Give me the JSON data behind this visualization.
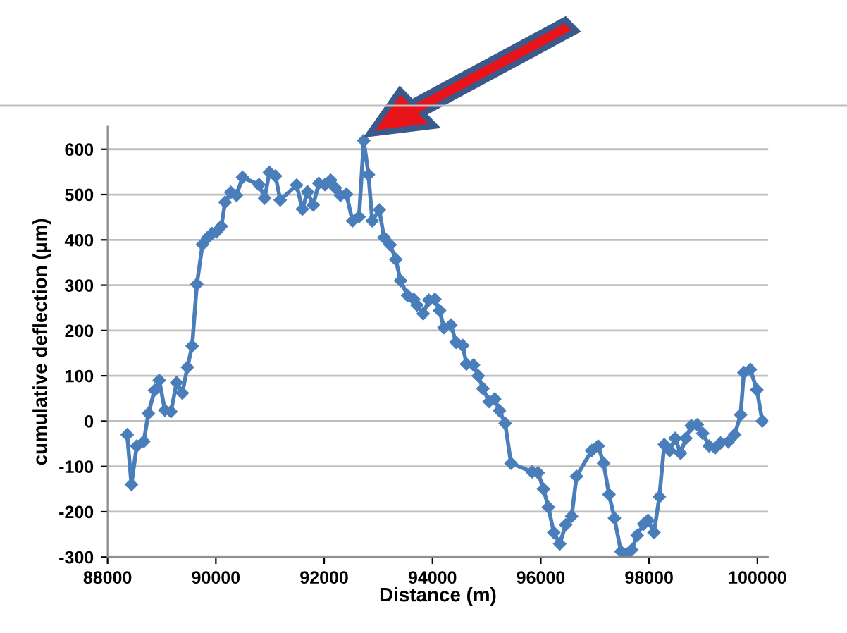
{
  "chart_data": {
    "type": "line",
    "xlabel": "Distance (m)",
    "ylabel": "cumulative deflection (µm)",
    "xlim": [
      88000,
      100200
    ],
    "xticks": [
      88000,
      90000,
      92000,
      94000,
      96000,
      98000,
      100000
    ],
    "ylim": [
      -300,
      650
    ],
    "yticks": [
      -300,
      -200,
      -100,
      0,
      100,
      200,
      300,
      400,
      500,
      600
    ],
    "grid": "y",
    "marker": "diamond",
    "line_style": "solid",
    "legend": false,
    "series": [
      {
        "color": "#4a7ebb",
        "x": [
          88363,
          88441,
          88538,
          88668,
          88754,
          88867,
          88954,
          89058,
          89171,
          89275,
          89380,
          89475,
          89562,
          89649,
          89753,
          89840,
          89927,
          90014,
          90101,
          90170,
          90275,
          90379,
          90492,
          90797,
          90901,
          90988,
          91101,
          91188,
          91492,
          91597,
          91692,
          91797,
          91901,
          92014,
          92119,
          92206,
          92301,
          92410,
          92522,
          92644,
          92731,
          92818,
          92888,
          93018,
          93105,
          93218,
          93322,
          93410,
          93540,
          93653,
          93714,
          93828,
          93932,
          94045,
          94132,
          94210,
          94340,
          94436,
          94558,
          94627,
          94758,
          94845,
          94932,
          95046,
          95150,
          95237,
          95342,
          95450,
          95840,
          95950,
          96050,
          96140,
          96240,
          96350,
          96460,
          96570,
          96660,
          96940,
          97060,
          97160,
          97260,
          97360,
          97480,
          97580,
          97680,
          97780,
          97900,
          97980,
          98090,
          98190,
          98280,
          98380,
          98480,
          98580,
          98680,
          98780,
          98890,
          98990,
          99110,
          99220,
          99320,
          99460,
          99580,
          99690,
          99750,
          99870,
          99990,
          100090
        ],
        "values": [
          -30,
          -140,
          -55,
          -45,
          17,
          68,
          90,
          24,
          21,
          85,
          62,
          119,
          166,
          302,
          390,
          404,
          414,
          418,
          430,
          483,
          505,
          498,
          538,
          522,
          492,
          549,
          541,
          488,
          521,
          468,
          506,
          477,
          525,
          522,
          532,
          515,
          498,
          501,
          442,
          451,
          619,
          544,
          442,
          466,
          405,
          389,
          357,
          310,
          277,
          269,
          256,
          237,
          267,
          269,
          244,
          206,
          212,
          174,
          167,
          126,
          124,
          100,
          72,
          43,
          49,
          23,
          -5,
          -93,
          -112,
          -114,
          -150,
          -190,
          -246,
          -271,
          -229,
          -210,
          -122,
          -65,
          -55,
          -93,
          -162,
          -214,
          -288,
          -293,
          -284,
          -252,
          -227,
          -219,
          -246,
          -167,
          -52,
          -65,
          -38,
          -71,
          -38,
          -10,
          -8,
          -27,
          -55,
          -59,
          -48,
          -46,
          -30,
          14,
          107,
          114,
          69,
          0
        ]
      }
    ]
  }
}
